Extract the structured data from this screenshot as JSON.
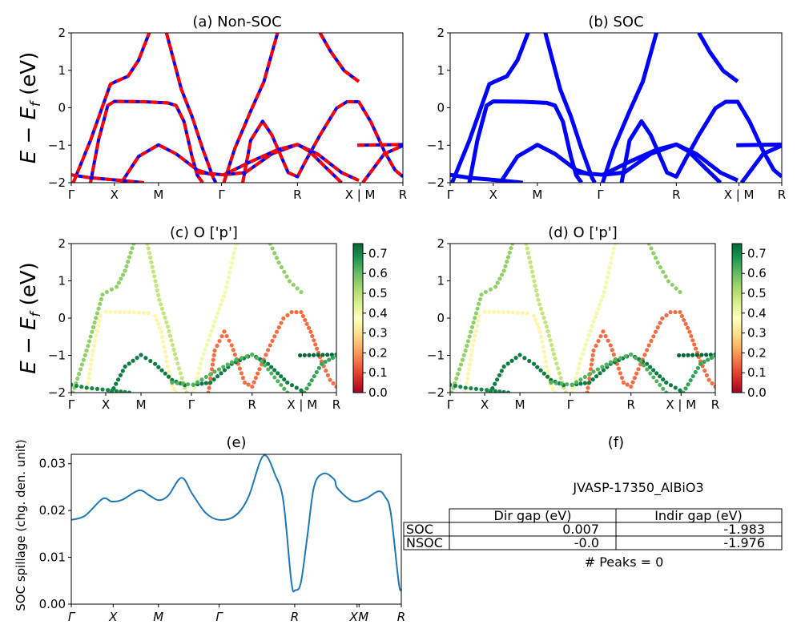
{
  "chart_data": {
    "type": "line",
    "ylim": [
      -2,
      2
    ],
    "yticks": [
      "2",
      "1",
      "0",
      "−1",
      "−2"
    ],
    "ytick_values": [
      2,
      1,
      0,
      -1,
      -2
    ],
    "ylabel": {
      "main": "E − E",
      "sub": "f",
      "unit": " (eV)"
    },
    "kpath_labels": [
      "Γ",
      "X",
      "M",
      "Γ",
      "R",
      "X | M",
      "R"
    ],
    "kpath_positions": [
      0,
      0.13,
      0.263,
      0.453,
      0.682,
      0.871,
      1.0
    ],
    "colors": {
      "bands_blue": "#0000ff",
      "bands_red": "#ff0000",
      "spillage": "#1f77b4"
    },
    "panels": [
      {
        "id": "a",
        "title": "(a) Non-SOC",
        "style": "blue-red-dashed",
        "show_ylabel": true
      },
      {
        "id": "b",
        "title": "(b) SOC",
        "style": "blue",
        "show_ylabel": false
      },
      {
        "id": "c",
        "title": "(c)  O ['p']",
        "style": "scatter",
        "show_ylabel": true
      },
      {
        "id": "d",
        "title": "(d) O ['p']",
        "style": "scatter",
        "show_ylabel": false
      }
    ],
    "colorbar": {
      "colormap": "RdYlGn",
      "range": [
        0,
        0.75
      ],
      "ticks": [
        "0.0",
        "0.1",
        "0.2",
        "0.3",
        "0.4",
        "0.5",
        "0.6",
        "0.7"
      ],
      "tick_values": [
        0,
        0.1,
        0.2,
        0.3,
        0.4,
        0.5,
        0.6,
        0.7
      ]
    },
    "bands": [
      {
        "w": 0.55,
        "k": [
          0.006,
          0.058,
          0.118,
          0.134,
          0.171,
          0.203,
          0.235
        ],
        "E": [
          -2,
          -0.87,
          0.63,
          0.7,
          0.84,
          1.27,
          2
        ]
      },
      {
        "w": 0.48,
        "k": [
          0.287,
          0.332,
          0.364,
          0.396,
          0.428,
          0.436
        ],
        "E": [
          2,
          0.49,
          -0.23,
          -1.09,
          -1.87,
          -2
        ]
      },
      {
        "w": 0.35,
        "k": [
          0.058,
          0.082,
          0.11,
          0.13,
          0.219,
          0.291,
          0.316,
          0.34,
          0.364,
          0.38,
          0.396
        ],
        "E": [
          -2,
          -0.87,
          0.06,
          0.17,
          0.16,
          0.13,
          0.06,
          -0.37,
          -1.3,
          -1.8,
          -2
        ]
      },
      {
        "w": 0.72,
        "k": [
          0.151,
          0.203,
          0.263,
          0.316,
          0.38,
          0.428
        ],
        "E": [
          -2,
          -1.3,
          -0.99,
          -1.23,
          -1.66,
          -1.8
        ]
      },
      {
        "w": 0.7,
        "k": [
          0,
          0.058,
          0.138,
          0.219
        ],
        "E": [
          -1.79,
          -1.87,
          -1.93,
          -2
        ]
      },
      {
        "w": 0.4,
        "k": [
          0.46,
          0.493,
          0.541,
          0.581,
          0.622
        ],
        "E": [
          -2,
          -1.09,
          -0.09,
          0.7,
          2
        ]
      },
      {
        "w": 0.15,
        "k": [
          0.517,
          0.541,
          0.577,
          0.605,
          0.654,
          0.682,
          0.71,
          0.75,
          0.8,
          0.831,
          0.867,
          0.903,
          0.944,
          0.976,
          1.0
        ],
        "E": [
          -2,
          -0.87,
          -0.36,
          -0.73,
          -1.73,
          -1.84,
          -1.37,
          -0.73,
          -0.01,
          0.16,
          0.16,
          -0.37,
          -1.16,
          -1.66,
          -1.84
        ]
      },
      {
        "w": 0.72,
        "k": [
          0.46,
          0.525,
          0.605,
          0.682,
          0.742,
          0.815,
          0.867
        ],
        "E": [
          -1.79,
          -1.73,
          -1.23,
          -0.98,
          -1.23,
          -1.73,
          -1.94
        ]
      },
      {
        "w": 0.62,
        "k": [
          0.38,
          0.46,
          0.541,
          0.622,
          0.682,
          0.718,
          0.767,
          0.815
        ],
        "E": [
          -1.73,
          -1.79,
          -1.44,
          -1.12,
          -0.98,
          -1.16,
          -1.59,
          -2
        ]
      },
      {
        "w": 0.55,
        "k": [
          0.75,
          0.783,
          0.823,
          0.867
        ],
        "E": [
          2,
          1.49,
          0.99,
          0.7
        ]
      },
      {
        "w": 0.75,
        "k": [
          0.863,
          1.0
        ],
        "E": [
          -1,
          -0.98
        ]
      },
      {
        "w": 0.65,
        "k": [
          0.879,
          0.944,
          1.0
        ],
        "E": [
          -2,
          -1.23,
          -1.01
        ]
      }
    ],
    "spillage": {
      "title": "(e)",
      "ylabel": "SOC spillage (chg. den. unit)",
      "ylim": [
        0,
        0.032
      ],
      "yticks": [
        "0.00",
        "0.01",
        "0.02",
        "0.03"
      ],
      "ytick_values": [
        0,
        0.01,
        0.02,
        0.03
      ],
      "xtick_labels": [
        "Γ",
        "X",
        "M",
        "Γ",
        "R",
        "X",
        "M",
        "R"
      ],
      "xtick_positions": [
        0,
        0.127,
        0.264,
        0.448,
        0.677,
        0.866,
        0.872,
        1.0
      ],
      "k": [
        0,
        0.042,
        0.095,
        0.123,
        0.155,
        0.205,
        0.237,
        0.265,
        0.294,
        0.334,
        0.367,
        0.407,
        0.448,
        0.497,
        0.537,
        0.582,
        0.619,
        0.643,
        0.667,
        0.679,
        0.696,
        0.716,
        0.736,
        0.765,
        0.797,
        0.805,
        0.838,
        0.862,
        0.894,
        0.931,
        0.951,
        0.968,
        0.992,
        1.0
      ],
      "values": [
        0.018,
        0.0189,
        0.0225,
        0.0219,
        0.0223,
        0.0243,
        0.0232,
        0.0222,
        0.0232,
        0.027,
        0.0235,
        0.0195,
        0.018,
        0.0189,
        0.0229,
        0.0317,
        0.0274,
        0.0218,
        0.0047,
        0.003,
        0.0047,
        0.0149,
        0.0252,
        0.0279,
        0.0266,
        0.0249,
        0.0226,
        0.0219,
        0.0226,
        0.0241,
        0.0229,
        0.0195,
        0.0047,
        0.003
      ]
    },
    "info": {
      "title": "(f)",
      "material": "JVASP-17350_AlBiO3",
      "table": {
        "headers": [
          "Dir gap (eV)",
          "Indir gap (eV)"
        ],
        "rows": [
          {
            "label": "SOC",
            "dir": "0.007",
            "indir": "-1.983"
          },
          {
            "label": "NSOC",
            "dir": "-0.0",
            "indir": "-1.976"
          }
        ]
      },
      "peaks": "# Peaks = 0"
    }
  }
}
